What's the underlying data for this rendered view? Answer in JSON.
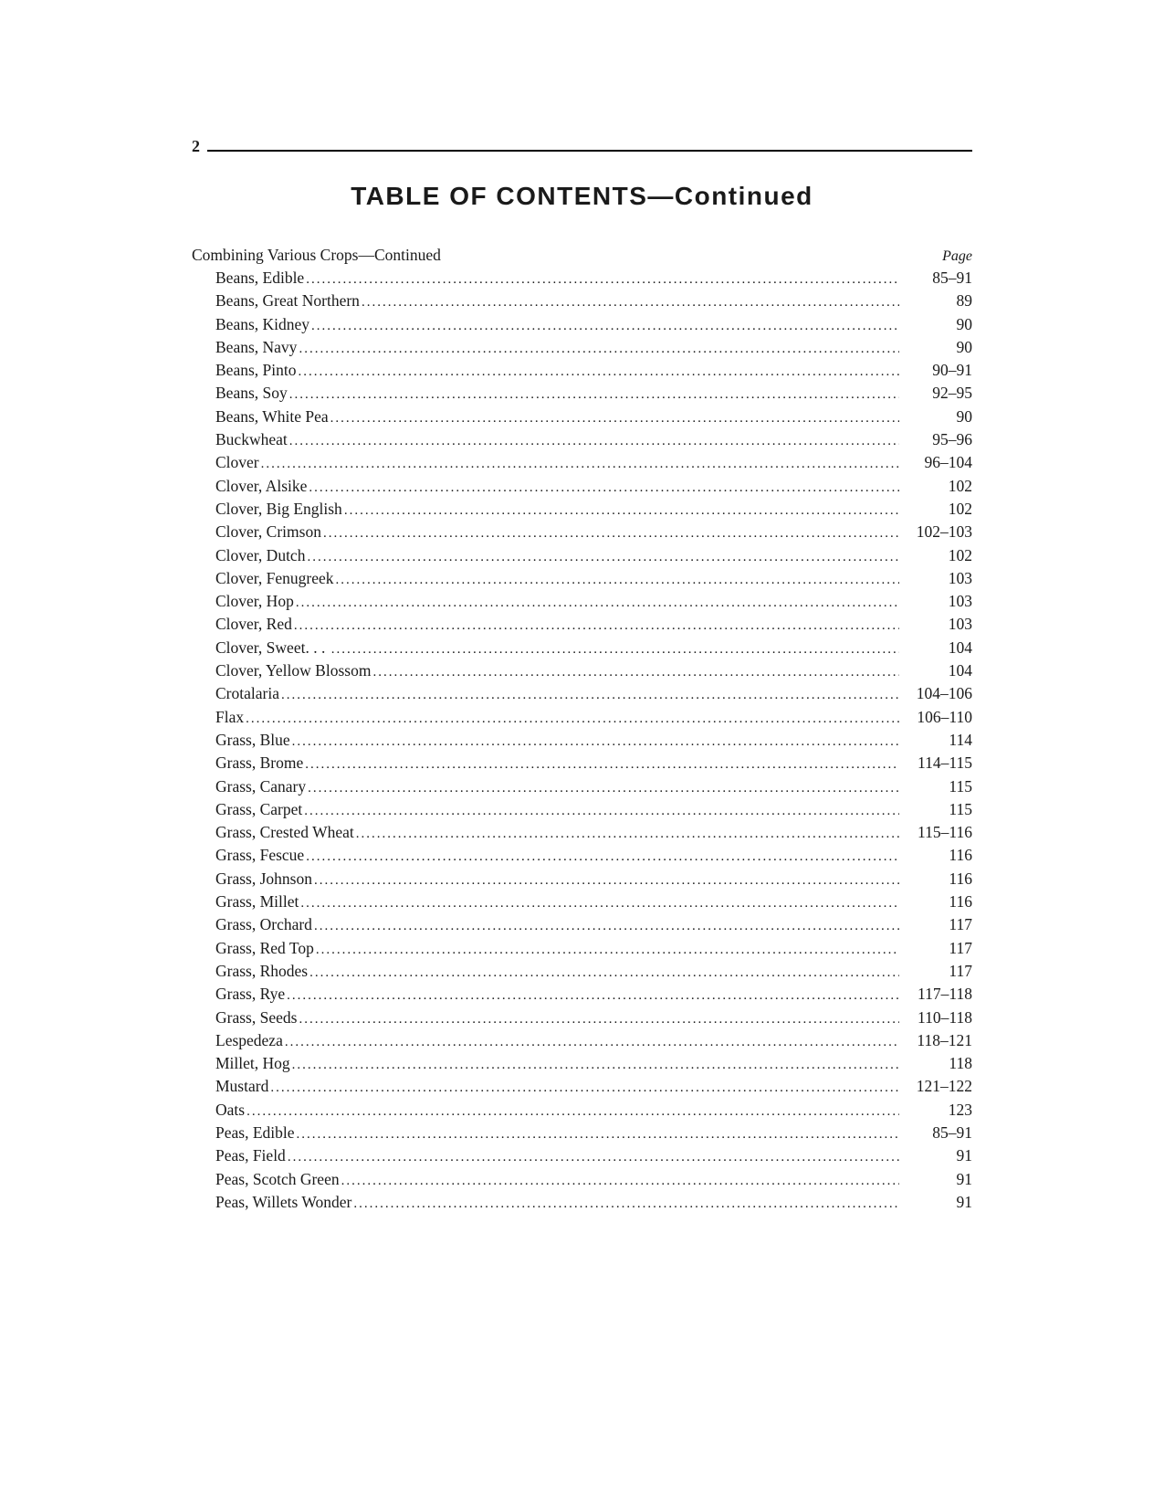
{
  "page_number": "2",
  "title": "TABLE OF CONTENTS—Continued",
  "section_heading": "Combining Various Crops—Continued",
  "page_column_header": "Page",
  "style": {
    "background": "#ffffff",
    "text_color": "#1a1a1a",
    "title_fontsize": 28,
    "body_fontsize": 17.5,
    "page_col_header_fontsize": 16,
    "rule_weight": 2.5,
    "indent": 26
  },
  "entries": [
    {
      "label": "Beans, Edible",
      "page": "85–91"
    },
    {
      "label": "Beans, Great Northern",
      "page": "89"
    },
    {
      "label": "Beans, Kidney",
      "page": "90"
    },
    {
      "label": "Beans, Navy",
      "page": "90"
    },
    {
      "label": "Beans, Pinto",
      "page": "90–91"
    },
    {
      "label": "Beans, Soy",
      "page": "92–95"
    },
    {
      "label": "Beans, White Pea",
      "page": "90"
    },
    {
      "label": "Buckwheat",
      "page": "95–96"
    },
    {
      "label": "Clover",
      "page": "96–104"
    },
    {
      "label": "Clover, Alsike",
      "page": "102"
    },
    {
      "label": "Clover, Big English",
      "page": "102"
    },
    {
      "label": "Clover, Crimson",
      "page": "102–103"
    },
    {
      "label": "Clover, Dutch",
      "page": "102"
    },
    {
      "label": "Clover, Fenugreek",
      "page": "103"
    },
    {
      "label": "Clover, Hop",
      "page": "103"
    },
    {
      "label": "Clover, Red",
      "page": "103"
    },
    {
      "label": "Clover, Sweet",
      "extra_space": true,
      "page": "104"
    },
    {
      "label": "Clover, Yellow Blossom",
      "page": "104"
    },
    {
      "label": "Crotalaria",
      "page": "104–106"
    },
    {
      "label": "Flax",
      "page": "106–110"
    },
    {
      "label": "Grass, Blue",
      "page": "114"
    },
    {
      "label": "Grass, Brome",
      "page": "114–115"
    },
    {
      "label": "Grass, Canary",
      "page": "115"
    },
    {
      "label": "Grass, Carpet",
      "page": "115"
    },
    {
      "label": "Grass, Crested Wheat",
      "page": "115–116"
    },
    {
      "label": "Grass, Fescue",
      "page": "116"
    },
    {
      "label": "Grass, Johnson",
      "page": "116"
    },
    {
      "label": "Grass, Millet",
      "page": "116"
    },
    {
      "label": "Grass, Orchard",
      "page": "117"
    },
    {
      "label": "Grass, Red Top",
      "page": "117"
    },
    {
      "label": "Grass, Rhodes",
      "page": "117"
    },
    {
      "label": "Grass, Rye",
      "page": "117–118"
    },
    {
      "label": "Grass, Seeds",
      "page": "110–118"
    },
    {
      "label": "Lespedeza",
      "page": "118–121"
    },
    {
      "label": "Millet, Hog",
      "page": "118"
    },
    {
      "label": "Mustard",
      "page": "121–122"
    },
    {
      "label": "Oats",
      "page": "123"
    },
    {
      "label": "Peas, Edible",
      "page": "85–91"
    },
    {
      "label": "Peas, Field",
      "page": "91"
    },
    {
      "label": "Peas, Scotch Green",
      "page": "91"
    },
    {
      "label": "Peas, Willets Wonder",
      "page": "91"
    }
  ]
}
